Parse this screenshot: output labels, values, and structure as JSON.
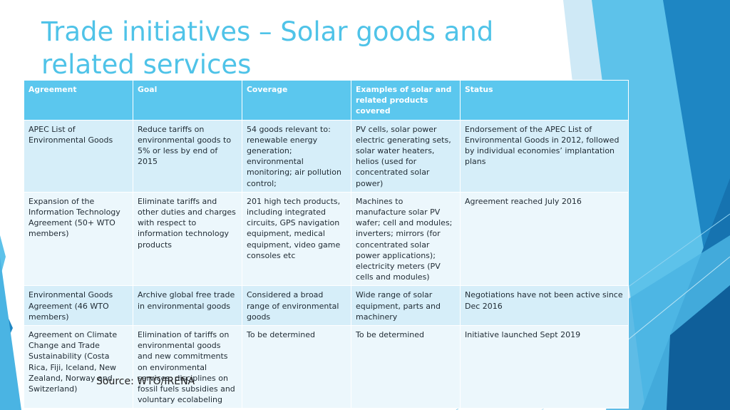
{
  "title": "Trade initiatives – Solar goods and related services",
  "source": "Source: WTO/IRENA",
  "colors": {
    "title": "#4fc3e8",
    "header_bg": "#5bc7ee",
    "row_odd": "#d6eef9",
    "row_even": "#ecf7fc"
  },
  "table": {
    "headers": [
      "Agreement",
      "Goal",
      "Coverage",
      "Examples of solar and related products covered",
      "Status"
    ],
    "rows": [
      [
        "APEC List of Environmental Goods",
        "Reduce tariffs on environmental goods to 5% or less by end of 2015",
        "54 goods relevant to: renewable energy generation; environmental monitoring; air pollution control;",
        "PV cells, solar power electric generating sets, solar water heaters, helios (used for concentrated solar power)",
        "Endorsement of the APEC List of Environmental Goods in 2012, followed by individual economies’ implantation plans"
      ],
      [
        "Expansion of the Information Technology Agreement (50+ WTO members)",
        "Eliminate tariffs and other duties and charges with respect to information technology products",
        "201 high tech products, including integrated circuits, GPS navigation equipment, medical equipment, video game consoles etc",
        "Machines to manufacture solar PV wafer; cell and modules; inverters; mirrors (for concentrated solar power applications); electricity meters (PV cells and modules)",
        "Agreement reached July 2016"
      ],
      [
        "Environmental Goods Agreement (46 WTO members)",
        "Archive global free trade in environmental goods",
        "Considered a broad range of environmental goods",
        "Wide range of solar equipment, parts and machinery",
        "Negotiations have not been active since Dec 2016"
      ],
      [
        "Agreement on Climate Change and Trade Sustainability (Costa Rica, Fiji, Iceland, New Zealand, Norway and Switzerland)",
        "Elimination of tariffs on environmental goods and new commitments on environmental services; disciplines on fossil fuels subsidies and voluntary ecolabeling",
        "To be determined",
        "To be determined",
        "Initiative launched Sept 2019"
      ]
    ]
  }
}
